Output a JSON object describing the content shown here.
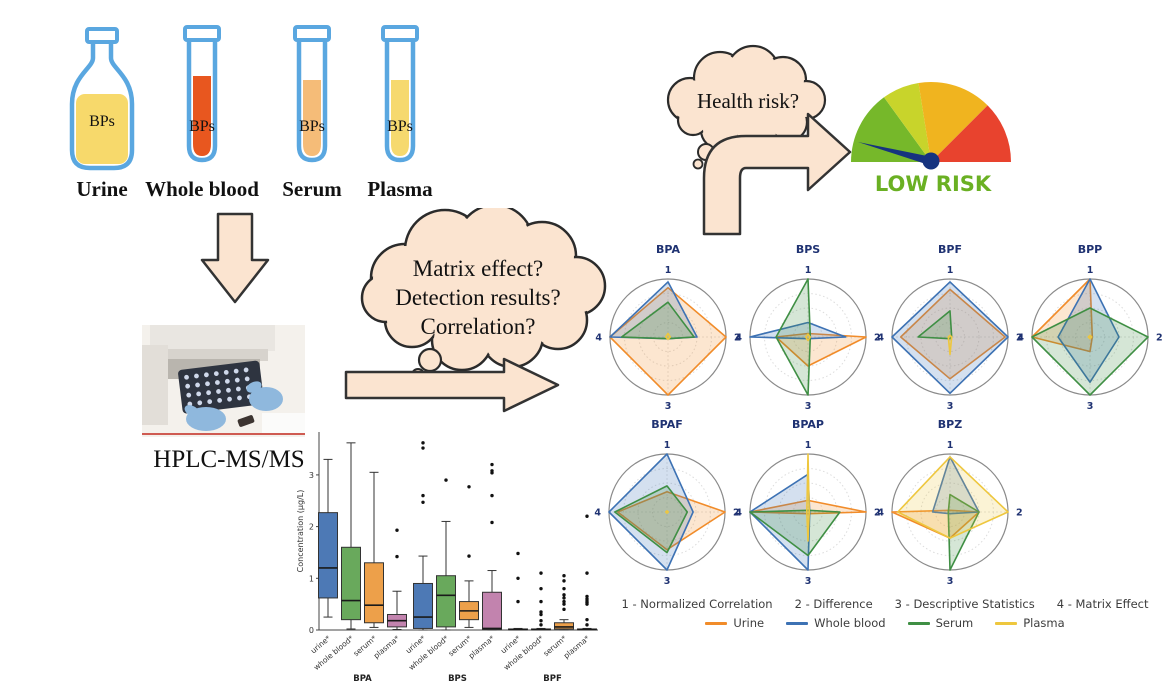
{
  "samples": {
    "outline_color": "#5aa7e0",
    "items": [
      {
        "name": "Urine",
        "content_label": "BPs",
        "container": "flask",
        "liquid_color": "#f7d96b"
      },
      {
        "name": "Whole blood",
        "content_label": "BPs",
        "container": "tube",
        "liquid_color": "#e8571f"
      },
      {
        "name": "Serum",
        "content_label": "BPs",
        "container": "tube",
        "liquid_color": "#f5bc78"
      },
      {
        "name": "Plasma",
        "content_label": "BPs",
        "container": "tube",
        "liquid_color": "#f6d96e"
      }
    ]
  },
  "instrument": {
    "label": "HPLC-MS/MS"
  },
  "question_cloud": {
    "lines": [
      "Matrix effect?",
      "Detection results?",
      "Correlation?"
    ]
  },
  "health_cloud": {
    "text": "Health risk?"
  },
  "gauge": {
    "label": "LOW RISK",
    "label_color": "#6ab023",
    "segment_colors": [
      "#76b82a",
      "#c8d42b",
      "#f0b41f",
      "#e8432e"
    ],
    "needle_color": "#16337f"
  },
  "chart_data": [
    {
      "type": "box",
      "title": "",
      "ylabel": "Concentration (µg/L)",
      "ylim": [
        0,
        3.8
      ],
      "yticks": [
        0,
        1,
        2,
        3
      ],
      "matrices": [
        "urine*",
        "whole blood*",
        "serum*",
        "plasma*"
      ],
      "matrix_colors": [
        "#4d79b5",
        "#69a95c",
        "#eda04a",
        "#c283ae"
      ],
      "groups": [
        {
          "label": "BPA",
          "boxes": [
            {
              "lo": 0.25,
              "q1": 0.62,
              "med": 1.2,
              "q3": 2.27,
              "hi": 3.3,
              "out": []
            },
            {
              "lo": 0.02,
              "q1": 0.2,
              "med": 0.57,
              "q3": 1.6,
              "hi": 3.62,
              "out": []
            },
            {
              "lo": 0.05,
              "q1": 0.14,
              "med": 0.48,
              "q3": 1.3,
              "hi": 3.05,
              "out": []
            },
            {
              "lo": 0.01,
              "q1": 0.06,
              "med": 0.18,
              "q3": 0.3,
              "hi": 0.75,
              "out": [
                1.42,
                1.93
              ]
            }
          ]
        },
        {
          "label": "BPS",
          "boxes": [
            {
              "lo": 0.0,
              "q1": 0.03,
              "med": 0.25,
              "q3": 0.9,
              "hi": 1.43,
              "out": [
                2.47,
                2.6,
                3.52,
                3.62
              ]
            },
            {
              "lo": 0.0,
              "q1": 0.06,
              "med": 0.67,
              "q3": 1.05,
              "hi": 2.1,
              "out": [
                2.9
              ]
            },
            {
              "lo": 0.05,
              "q1": 0.2,
              "med": 0.37,
              "q3": 0.55,
              "hi": 0.95,
              "out": [
                1.43,
                2.77
              ]
            },
            {
              "lo": 0.0,
              "q1": 0.01,
              "med": 0.03,
              "q3": 0.73,
              "hi": 1.15,
              "out": [
                2.08,
                2.6,
                3.04,
                3.08,
                3.2
              ]
            }
          ]
        },
        {
          "label": "BPF",
          "boxes": [
            {
              "lo": 0.0,
              "q1": 0.0,
              "med": 0.01,
              "q3": 0.02,
              "hi": 0.03,
              "out": [
                0.55,
                1.0,
                1.48
              ]
            },
            {
              "lo": 0.0,
              "q1": 0.0,
              "med": 0.01,
              "q3": 0.02,
              "hi": 0.03,
              "out": [
                0.1,
                0.18,
                0.3,
                0.35,
                0.55,
                0.8,
                1.1
              ]
            },
            {
              "lo": 0.0,
              "q1": 0.02,
              "med": 0.06,
              "q3": 0.14,
              "hi": 0.2,
              "out": [
                0.4,
                0.5,
                0.55,
                0.62,
                0.68,
                0.8,
                0.95,
                1.05
              ]
            },
            {
              "lo": 0.0,
              "q1": 0.0,
              "med": 0.01,
              "q3": 0.02,
              "hi": 0.03,
              "out": [
                0.1,
                0.2,
                0.5,
                0.53,
                0.56,
                0.6,
                0.65,
                1.1,
                2.2
              ]
            }
          ]
        }
      ]
    },
    {
      "type": "radar",
      "rlim": [
        0,
        1
      ],
      "axis_labels": [
        "1",
        "2",
        "3",
        "4"
      ],
      "axis_legend": [
        "1 - Normalized Correlation",
        "2 - Difference",
        "3 - Descriptive Statistics",
        "4 - Matrix Effect"
      ],
      "series": [
        {
          "name": "Urine",
          "color": "#f18c2a"
        },
        {
          "name": "Whole blood",
          "color": "#3d72b4"
        },
        {
          "name": "Serum",
          "color": "#3f8f44"
        },
        {
          "name": "Plasma",
          "color": "#eec73e"
        }
      ],
      "subplots": [
        {
          "title": "BPA",
          "values": [
            [
              0.85,
              1,
              1,
              1
            ],
            [
              0.95,
              0.5,
              0.03,
              1
            ],
            [
              0.6,
              0.45,
              0.03,
              0.8
            ],
            [
              0.06,
              0.04,
              0.04,
              0.04
            ]
          ]
        },
        {
          "title": "BPS",
          "values": [
            [
              0.06,
              1,
              0.5,
              0.55
            ],
            [
              0.25,
              0.65,
              0.03,
              1
            ],
            [
              1,
              0.04,
              1,
              0.55
            ],
            [
              0.05,
              0.04,
              0.06,
              0.04
            ]
          ]
        },
        {
          "title": "BPF",
          "values": [
            [
              0.82,
              0.95,
              0.72,
              0.85
            ],
            [
              0.95,
              1,
              0.97,
              1
            ],
            [
              0.45,
              0.03,
              0.03,
              0.55
            ],
            [
              0.03,
              0.03,
              0.3,
              0.03
            ]
          ]
        },
        {
          "title": "BPP",
          "values": [
            [
              1,
              0.04,
              0.25,
              1
            ],
            [
              1,
              0.5,
              0.78,
              0.55
            ],
            [
              0.5,
              1,
              1,
              1
            ],
            [
              0.03,
              0.03,
              0.03,
              0.03
            ]
          ]
        },
        {
          "title": "BPAF",
          "values": [
            [
              0.35,
              1,
              0.65,
              0.85
            ],
            [
              1,
              0.45,
              1,
              1
            ],
            [
              0.45,
              0.35,
              0.7,
              0.9
            ],
            [
              0.02,
              0.02,
              0.02,
              0.02
            ]
          ]
        },
        {
          "title": "BPAP",
          "values": [
            [
              0.2,
              1,
              0.03,
              1
            ],
            [
              0.65,
              0.03,
              1,
              1
            ],
            [
              0.03,
              0.55,
              0.75,
              1
            ],
            [
              1,
              0.02,
              0.5,
              0.02
            ]
          ]
        },
        {
          "title": "BPZ",
          "values": [
            [
              0.03,
              0.5,
              0.45,
              1
            ],
            [
              0.95,
              0.5,
              0.03,
              0.3
            ],
            [
              0.3,
              0.5,
              1,
              0.03
            ],
            [
              0.95,
              1,
              0.45,
              0.9
            ]
          ]
        }
      ]
    }
  ]
}
